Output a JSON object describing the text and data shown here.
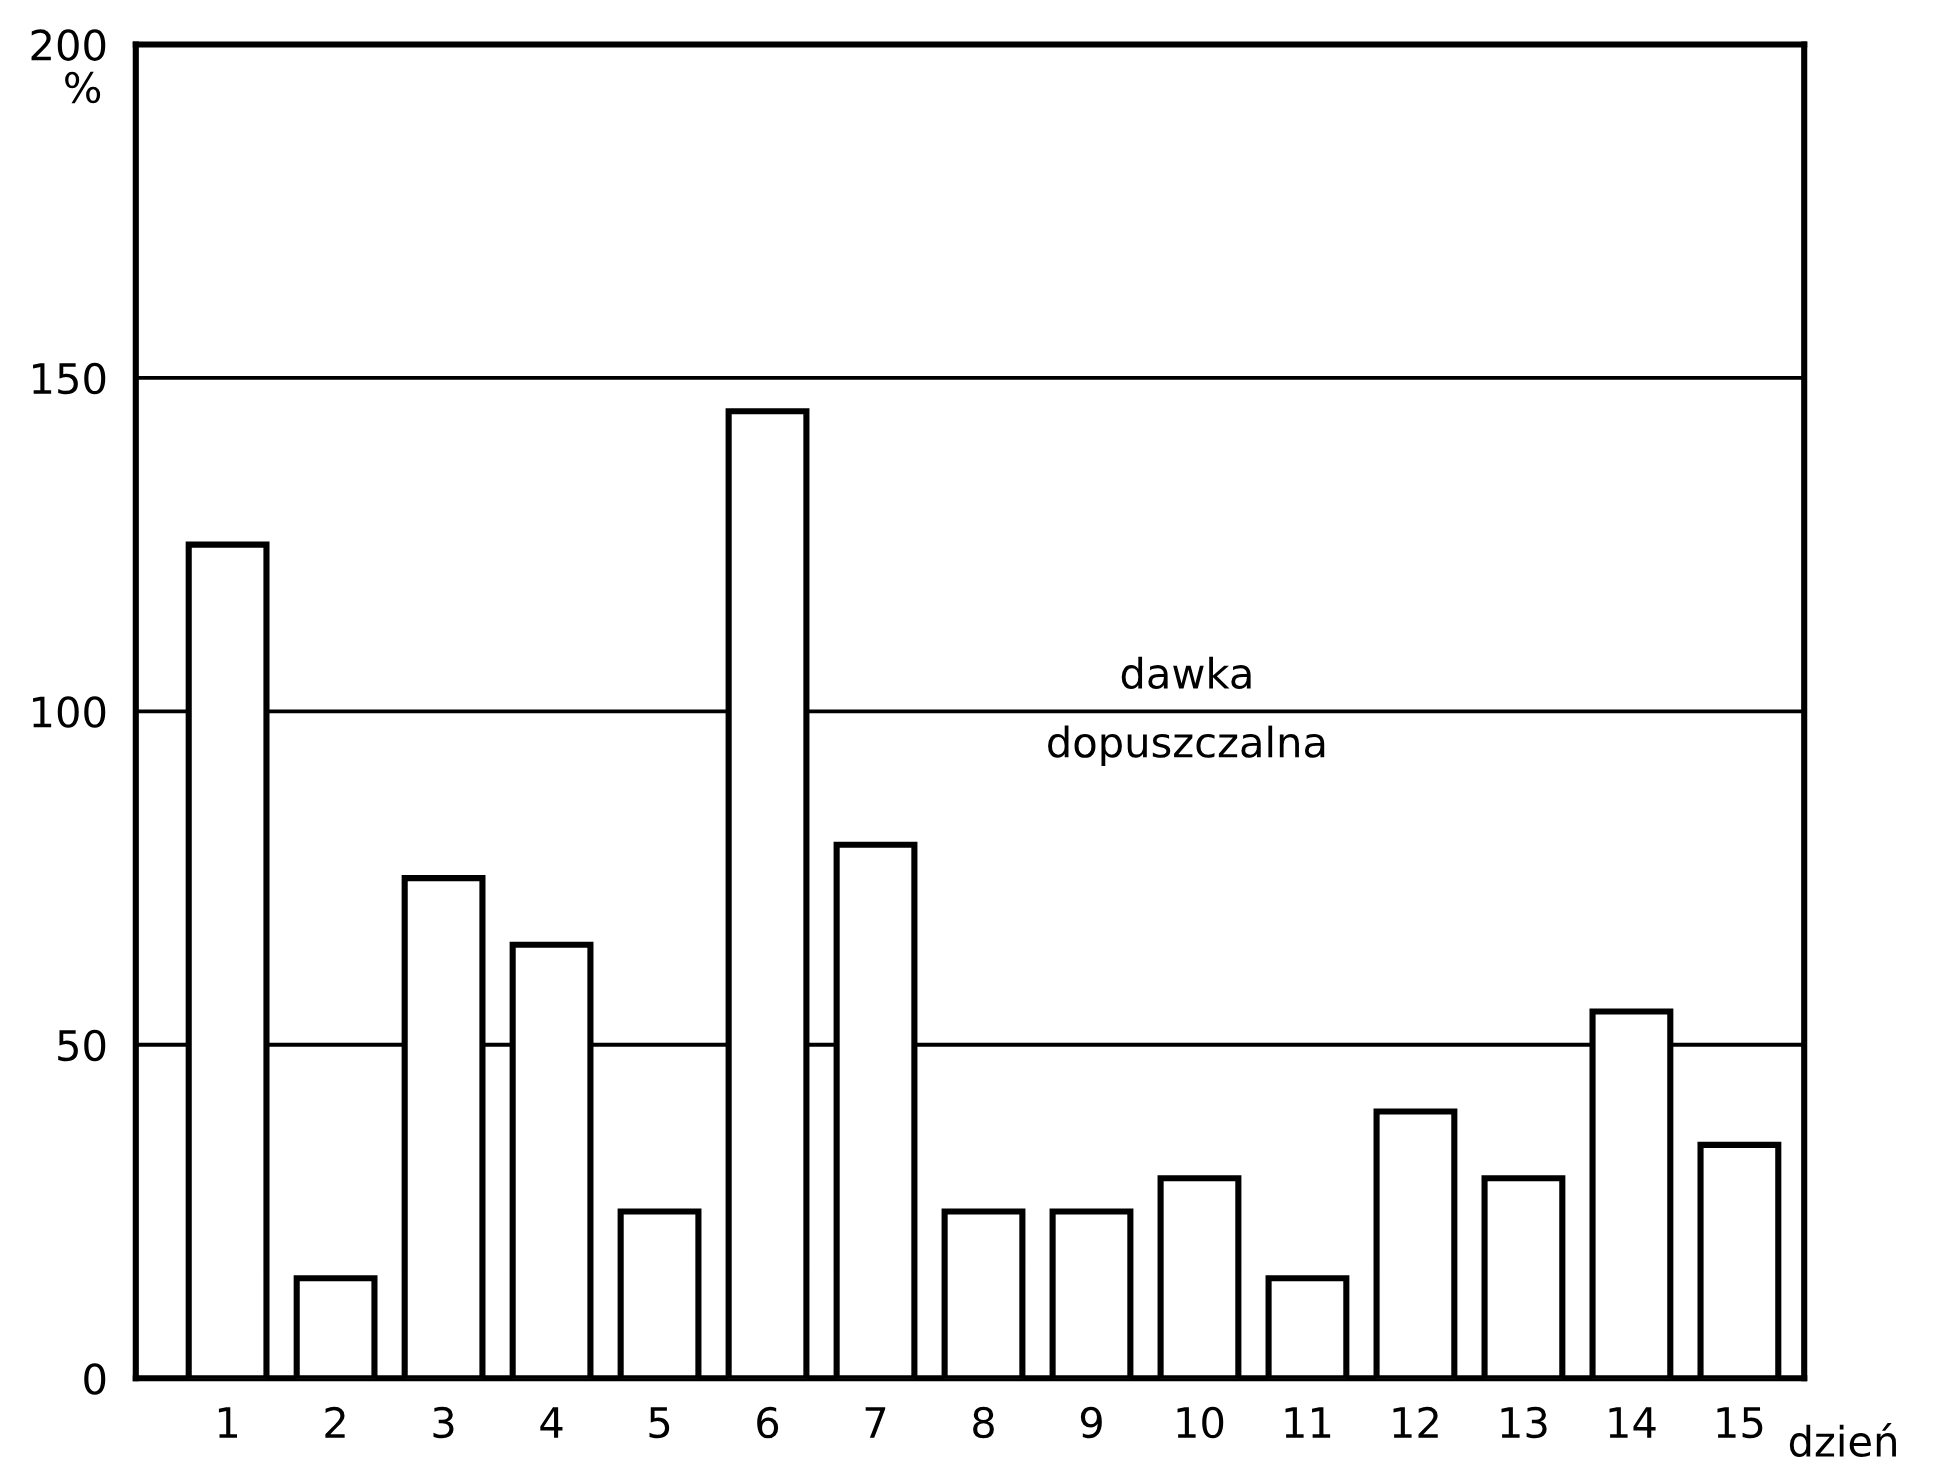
{
  "chart_data": {
    "type": "bar",
    "categories": [
      "1",
      "2",
      "3",
      "4",
      "5",
      "6",
      "7",
      "8",
      "9",
      "10",
      "11",
      "12",
      "13",
      "14",
      "15"
    ],
    "values": [
      125,
      15,
      75,
      65,
      25,
      145,
      80,
      25,
      25,
      30,
      15,
      40,
      30,
      55,
      35
    ],
    "color": "#ffffff",
    "xlabel": "dzień",
    "ylabel": "%",
    "ylim": [
      0,
      200
    ],
    "yticks": [
      0,
      50,
      100,
      150,
      200
    ],
    "grid": "y",
    "annotations": [
      "dawka\ndopuszczalna"
    ]
  }
}
